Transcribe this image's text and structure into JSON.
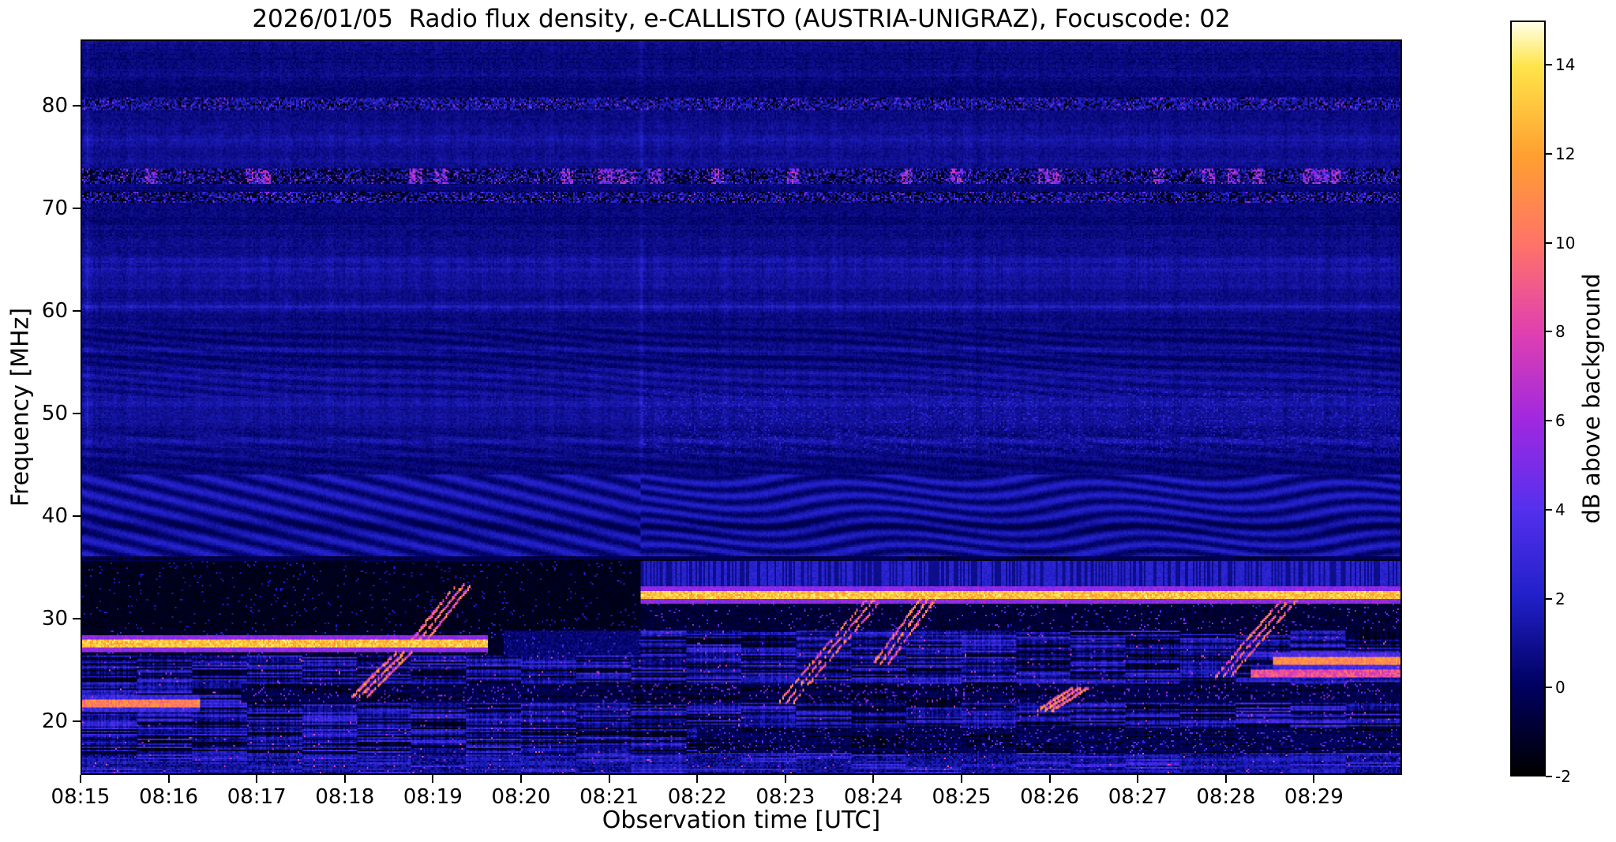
{
  "chart_data": {
    "type": "heatmap",
    "subtype": "radio-spectrogram",
    "title": "2026/01/05  Radio flux density, e-CALLISTO (AUSTRIA-UNIGRAZ), Focuscode: 02",
    "xlabel": "Observation time [UTC]",
    "ylabel": "Frequency [MHz]",
    "x_ticks": [
      "08:15",
      "08:16",
      "08:17",
      "08:18",
      "08:19",
      "08:20",
      "08:21",
      "08:22",
      "08:23",
      "08:24",
      "08:25",
      "08:26",
      "08:27",
      "08:28",
      "08:29"
    ],
    "x_range_minutes": [
      0,
      15
    ],
    "y_ticks": [
      20,
      30,
      40,
      50,
      60,
      70,
      80
    ],
    "freq_range": [
      14.8,
      86.5
    ],
    "grid": false,
    "colorbar": {
      "label": "dB above background",
      "ticks": [
        14,
        12,
        10,
        8,
        6,
        4,
        2,
        0,
        -2
      ],
      "vmin": -2,
      "vmax": 15,
      "stops": [
        [
          -2,
          "#000000"
        ],
        [
          0,
          "#000060"
        ],
        [
          2,
          "#2020c8"
        ],
        [
          4,
          "#5530ee"
        ],
        [
          6,
          "#a028e0"
        ],
        [
          8,
          "#e040b0"
        ],
        [
          10,
          "#ff7468"
        ],
        [
          12,
          "#ffa030"
        ],
        [
          14,
          "#ffe44a"
        ],
        [
          15,
          "#ffffe8"
        ]
      ]
    },
    "features": {
      "regime_change_minute": 6.35,
      "noisy_region_top_freq": 36,
      "wavy_band": [
        36,
        44
      ],
      "dark_band": {
        "f_low": 28.8,
        "f_high": 35.6
      },
      "speckle_bands": [
        [
          70.6,
          71.7,
          0.9
        ],
        [
          72.5,
          74.0,
          0.95
        ],
        [
          79.8,
          80.9,
          0.55
        ]
      ],
      "horizontal_rfi_lines": [
        [
          65.1,
          0.7
        ],
        [
          64.2,
          0.45
        ],
        [
          60.5,
          1.0
        ],
        [
          58.6,
          0.4
        ],
        [
          56.2,
          0.6
        ],
        [
          53.8,
          0.35
        ],
        [
          51.1,
          0.5
        ],
        [
          49.2,
          0.4
        ],
        [
          47.3,
          0.6
        ],
        [
          45.9,
          0.45
        ],
        [
          76.8,
          0.35
        ],
        [
          68.3,
          0.3
        ],
        [
          62.4,
          0.3
        ],
        [
          83.2,
          0.25
        ],
        [
          78.2,
          0.25
        ],
        [
          74.8,
          0.3
        ],
        [
          69.5,
          0.25
        ]
      ],
      "vertical_lines": [
        0.06,
        6.35
      ],
      "bright_lines": [
        {
          "freq": 27.5,
          "t_start": 0.0,
          "t_end": 4.62,
          "value": 13
        },
        {
          "freq": 32.2,
          "t_start": 6.35,
          "t_end": 15.0,
          "value": 13
        },
        {
          "freq": 21.6,
          "t_start": 0.0,
          "t_end": 1.35,
          "value": 10.5
        },
        {
          "freq": 25.8,
          "t_start": 13.55,
          "t_end": 15.0,
          "value": 11
        },
        {
          "freq": 24.6,
          "t_start": 13.3,
          "t_end": 15.0,
          "value": 8.5
        }
      ],
      "diagonal_streaks": [
        {
          "t": 4.05,
          "f_low": 27.3,
          "f_high": 33.2,
          "dur": 0.55
        },
        {
          "t": 3.4,
          "f_low": 22.3,
          "f_high": 26.6,
          "dur": 0.5
        },
        {
          "t": 8.5,
          "f_low": 21.8,
          "f_high": 31.8,
          "dur": 1.0
        },
        {
          "t": 9.35,
          "f_low": 25.5,
          "f_high": 32.0,
          "dur": 0.55
        },
        {
          "t": 13.35,
          "f_low": 24.3,
          "f_high": 31.8,
          "dur": 0.75
        },
        {
          "t": 11.15,
          "f_low": 21.0,
          "f_high": 23.2,
          "dur": 0.4
        }
      ]
    }
  }
}
